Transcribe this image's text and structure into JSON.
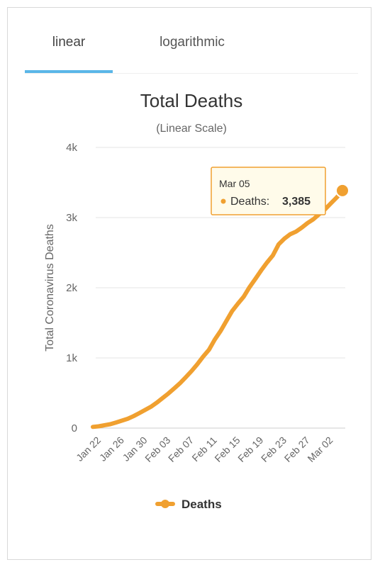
{
  "tabs": [
    {
      "label": "linear",
      "active": true
    },
    {
      "label": "logarithmic",
      "active": false
    }
  ],
  "tooltip": {
    "date": "Mar 05",
    "series": "Deaths:",
    "value": "3,385"
  },
  "chart_data": {
    "type": "line",
    "title": "Total Deaths",
    "subtitle": "(Linear Scale)",
    "ylabel": "Total Coronavirus Deaths",
    "xlabel": "",
    "ylim": [
      0,
      4000
    ],
    "y_ticks": [
      {
        "value": 0,
        "label": "0"
      },
      {
        "value": 1000,
        "label": "1k"
      },
      {
        "value": 2000,
        "label": "2k"
      },
      {
        "value": 3000,
        "label": "3k"
      },
      {
        "value": 4000,
        "label": "4k"
      }
    ],
    "x_tick_labels": [
      "Jan 22",
      "Jan 26",
      "Jan 30",
      "Feb 03",
      "Feb 07",
      "Feb 11",
      "Feb 15",
      "Feb 19",
      "Feb 23",
      "Feb 27",
      "Mar 02"
    ],
    "legend": {
      "position": "bottom-center",
      "label": "Deaths"
    },
    "grid": true,
    "color": "#f0a030",
    "series": [
      {
        "name": "Deaths",
        "x": [
          "Jan 22",
          "Jan 23",
          "Jan 24",
          "Jan 25",
          "Jan 26",
          "Jan 27",
          "Jan 28",
          "Jan 29",
          "Jan 30",
          "Jan 31",
          "Feb 01",
          "Feb 02",
          "Feb 03",
          "Feb 04",
          "Feb 05",
          "Feb 06",
          "Feb 07",
          "Feb 08",
          "Feb 09",
          "Feb 10",
          "Feb 11",
          "Feb 12",
          "Feb 13",
          "Feb 14",
          "Feb 15",
          "Feb 16",
          "Feb 17",
          "Feb 18",
          "Feb 19",
          "Feb 20",
          "Feb 21",
          "Feb 22",
          "Feb 23",
          "Feb 24",
          "Feb 25",
          "Feb 26",
          "Feb 27",
          "Feb 28",
          "Feb 29",
          "Mar 01",
          "Mar 02",
          "Mar 03",
          "Mar 04",
          "Mar 05"
        ],
        "values": [
          17,
          25,
          41,
          56,
          80,
          106,
          132,
          170,
          213,
          259,
          304,
          362,
          426,
          492,
          565,
          638,
          724,
          813,
          910,
          1018,
          1115,
          1261,
          1383,
          1526,
          1669,
          1775,
          1873,
          2009,
          2126,
          2247,
          2360,
          2460,
          2618,
          2699,
          2763,
          2800,
          2858,
          2923,
          2977,
          3050,
          3117,
          3202,
          3285,
          3385
        ]
      }
    ]
  }
}
